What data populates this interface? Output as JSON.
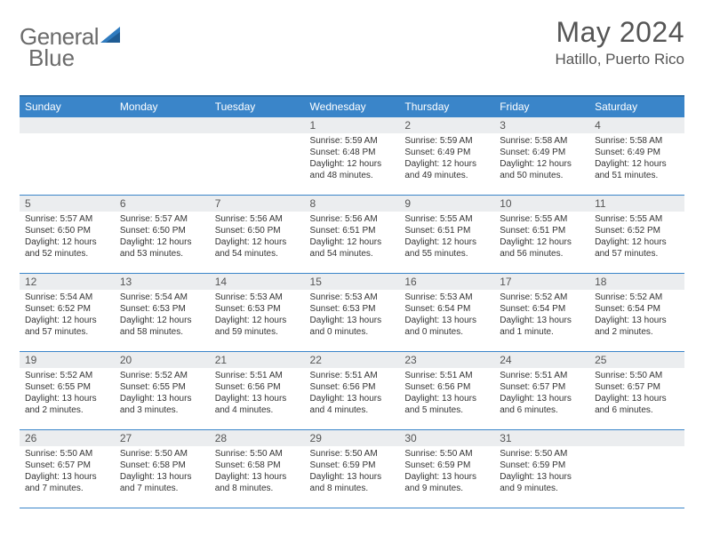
{
  "brand": {
    "text1": "General",
    "text2": "Blue",
    "accent_color": "#2f7bbf"
  },
  "title": "May 2024",
  "location": "Hatillo, Puerto Rico",
  "colors": {
    "header_bg": "#3a85c9",
    "header_border": "#2f6fa8",
    "row_border": "#3a85c9",
    "daynum_bg": "#ebedef",
    "text": "#333333"
  },
  "day_names": [
    "Sunday",
    "Monday",
    "Tuesday",
    "Wednesday",
    "Thursday",
    "Friday",
    "Saturday"
  ],
  "weeks": [
    [
      {
        "n": "",
        "lines": []
      },
      {
        "n": "",
        "lines": []
      },
      {
        "n": "",
        "lines": []
      },
      {
        "n": "1",
        "lines": [
          "Sunrise: 5:59 AM",
          "Sunset: 6:48 PM",
          "Daylight: 12 hours",
          "and 48 minutes."
        ]
      },
      {
        "n": "2",
        "lines": [
          "Sunrise: 5:59 AM",
          "Sunset: 6:49 PM",
          "Daylight: 12 hours",
          "and 49 minutes."
        ]
      },
      {
        "n": "3",
        "lines": [
          "Sunrise: 5:58 AM",
          "Sunset: 6:49 PM",
          "Daylight: 12 hours",
          "and 50 minutes."
        ]
      },
      {
        "n": "4",
        "lines": [
          "Sunrise: 5:58 AM",
          "Sunset: 6:49 PM",
          "Daylight: 12 hours",
          "and 51 minutes."
        ]
      }
    ],
    [
      {
        "n": "5",
        "lines": [
          "Sunrise: 5:57 AM",
          "Sunset: 6:50 PM",
          "Daylight: 12 hours",
          "and 52 minutes."
        ]
      },
      {
        "n": "6",
        "lines": [
          "Sunrise: 5:57 AM",
          "Sunset: 6:50 PM",
          "Daylight: 12 hours",
          "and 53 minutes."
        ]
      },
      {
        "n": "7",
        "lines": [
          "Sunrise: 5:56 AM",
          "Sunset: 6:50 PM",
          "Daylight: 12 hours",
          "and 54 minutes."
        ]
      },
      {
        "n": "8",
        "lines": [
          "Sunrise: 5:56 AM",
          "Sunset: 6:51 PM",
          "Daylight: 12 hours",
          "and 54 minutes."
        ]
      },
      {
        "n": "9",
        "lines": [
          "Sunrise: 5:55 AM",
          "Sunset: 6:51 PM",
          "Daylight: 12 hours",
          "and 55 minutes."
        ]
      },
      {
        "n": "10",
        "lines": [
          "Sunrise: 5:55 AM",
          "Sunset: 6:51 PM",
          "Daylight: 12 hours",
          "and 56 minutes."
        ]
      },
      {
        "n": "11",
        "lines": [
          "Sunrise: 5:55 AM",
          "Sunset: 6:52 PM",
          "Daylight: 12 hours",
          "and 57 minutes."
        ]
      }
    ],
    [
      {
        "n": "12",
        "lines": [
          "Sunrise: 5:54 AM",
          "Sunset: 6:52 PM",
          "Daylight: 12 hours",
          "and 57 minutes."
        ]
      },
      {
        "n": "13",
        "lines": [
          "Sunrise: 5:54 AM",
          "Sunset: 6:53 PM",
          "Daylight: 12 hours",
          "and 58 minutes."
        ]
      },
      {
        "n": "14",
        "lines": [
          "Sunrise: 5:53 AM",
          "Sunset: 6:53 PM",
          "Daylight: 12 hours",
          "and 59 minutes."
        ]
      },
      {
        "n": "15",
        "lines": [
          "Sunrise: 5:53 AM",
          "Sunset: 6:53 PM",
          "Daylight: 13 hours",
          "and 0 minutes."
        ]
      },
      {
        "n": "16",
        "lines": [
          "Sunrise: 5:53 AM",
          "Sunset: 6:54 PM",
          "Daylight: 13 hours",
          "and 0 minutes."
        ]
      },
      {
        "n": "17",
        "lines": [
          "Sunrise: 5:52 AM",
          "Sunset: 6:54 PM",
          "Daylight: 13 hours",
          "and 1 minute."
        ]
      },
      {
        "n": "18",
        "lines": [
          "Sunrise: 5:52 AM",
          "Sunset: 6:54 PM",
          "Daylight: 13 hours",
          "and 2 minutes."
        ]
      }
    ],
    [
      {
        "n": "19",
        "lines": [
          "Sunrise: 5:52 AM",
          "Sunset: 6:55 PM",
          "Daylight: 13 hours",
          "and 2 minutes."
        ]
      },
      {
        "n": "20",
        "lines": [
          "Sunrise: 5:52 AM",
          "Sunset: 6:55 PM",
          "Daylight: 13 hours",
          "and 3 minutes."
        ]
      },
      {
        "n": "21",
        "lines": [
          "Sunrise: 5:51 AM",
          "Sunset: 6:56 PM",
          "Daylight: 13 hours",
          "and 4 minutes."
        ]
      },
      {
        "n": "22",
        "lines": [
          "Sunrise: 5:51 AM",
          "Sunset: 6:56 PM",
          "Daylight: 13 hours",
          "and 4 minutes."
        ]
      },
      {
        "n": "23",
        "lines": [
          "Sunrise: 5:51 AM",
          "Sunset: 6:56 PM",
          "Daylight: 13 hours",
          "and 5 minutes."
        ]
      },
      {
        "n": "24",
        "lines": [
          "Sunrise: 5:51 AM",
          "Sunset: 6:57 PM",
          "Daylight: 13 hours",
          "and 6 minutes."
        ]
      },
      {
        "n": "25",
        "lines": [
          "Sunrise: 5:50 AM",
          "Sunset: 6:57 PM",
          "Daylight: 13 hours",
          "and 6 minutes."
        ]
      }
    ],
    [
      {
        "n": "26",
        "lines": [
          "Sunrise: 5:50 AM",
          "Sunset: 6:57 PM",
          "Daylight: 13 hours",
          "and 7 minutes."
        ]
      },
      {
        "n": "27",
        "lines": [
          "Sunrise: 5:50 AM",
          "Sunset: 6:58 PM",
          "Daylight: 13 hours",
          "and 7 minutes."
        ]
      },
      {
        "n": "28",
        "lines": [
          "Sunrise: 5:50 AM",
          "Sunset: 6:58 PM",
          "Daylight: 13 hours",
          "and 8 minutes."
        ]
      },
      {
        "n": "29",
        "lines": [
          "Sunrise: 5:50 AM",
          "Sunset: 6:59 PM",
          "Daylight: 13 hours",
          "and 8 minutes."
        ]
      },
      {
        "n": "30",
        "lines": [
          "Sunrise: 5:50 AM",
          "Sunset: 6:59 PM",
          "Daylight: 13 hours",
          "and 9 minutes."
        ]
      },
      {
        "n": "31",
        "lines": [
          "Sunrise: 5:50 AM",
          "Sunset: 6:59 PM",
          "Daylight: 13 hours",
          "and 9 minutes."
        ]
      },
      {
        "n": "",
        "lines": []
      }
    ]
  ]
}
